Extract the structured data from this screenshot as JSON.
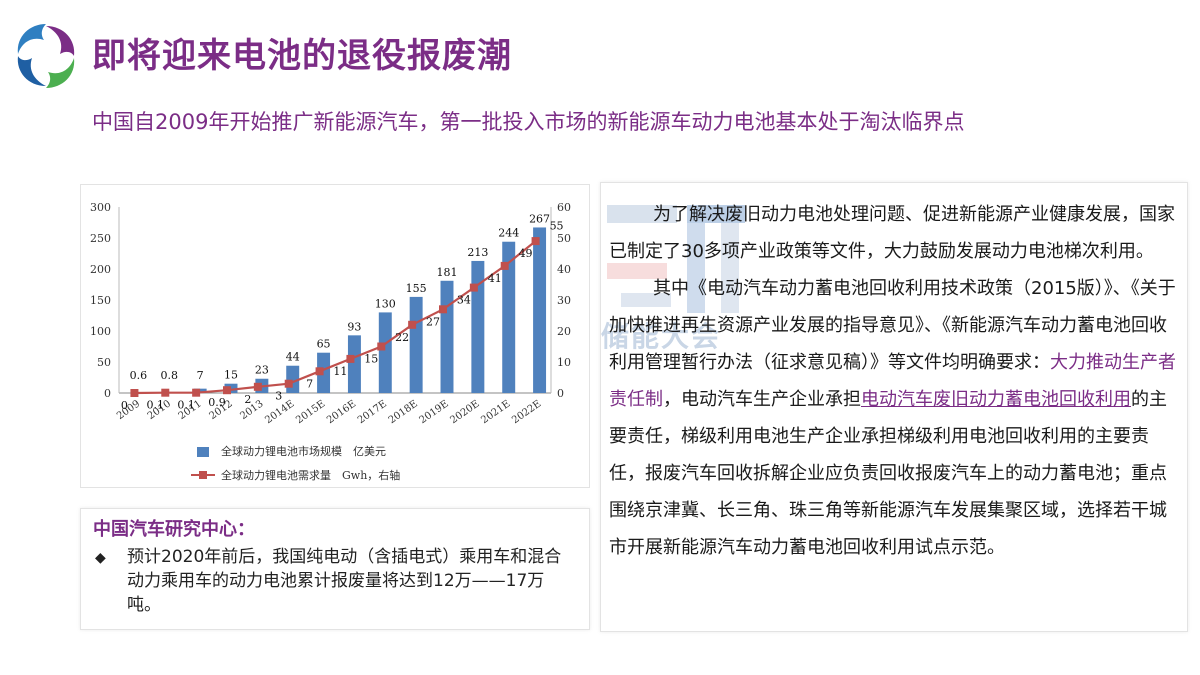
{
  "colors": {
    "accent": "#7b2d86",
    "bar": "#4f81bd",
    "line": "#c0504d"
  },
  "icons": {
    "logo": "swirl-logo-icon"
  },
  "header": {
    "title": "即将迎来电池的退役报废潮",
    "subtitle": "中国自2009年开始推广新能源汽车，第一批投入市场的新能源车动力电池基本处于淘汰临界点"
  },
  "chart_data": {
    "type": "bar",
    "categories": [
      "2009",
      "2010",
      "2011",
      "2012",
      "2013",
      "2014E",
      "2015E",
      "2016E",
      "2017E",
      "2018E",
      "2019E",
      "2020E",
      "2021E",
      "2022E"
    ],
    "series": [
      {
        "name": "全球动力锂电池市场规模　亿美元",
        "type": "bar",
        "axis": "left",
        "values": [
          0.6,
          0.8,
          7,
          15,
          23,
          44,
          65,
          93,
          130,
          155,
          181,
          213,
          244,
          267
        ],
        "labels": [
          "0.6",
          "0.8",
          "7",
          "15",
          "23",
          "44",
          "65",
          "93",
          "130",
          "155",
          "181",
          "213",
          "244",
          "267"
        ]
      },
      {
        "name": "全球动力锂电池需求量　Gwh，右轴",
        "type": "line",
        "axis": "right",
        "values": [
          0,
          0.1,
          0.1,
          0.9,
          2,
          3,
          7,
          11,
          15,
          22,
          27,
          34,
          41,
          49
        ],
        "labels": [
          "0",
          "0.1",
          "0.1",
          "0.9",
          "2",
          "3",
          "7",
          "11",
          "15",
          "22",
          "27",
          "34",
          "41",
          "49"
        ]
      }
    ],
    "extra_label": "55",
    "y_ticks": [
      "0",
      "50",
      "100",
      "150",
      "200",
      "250",
      "300"
    ],
    "y2_ticks": [
      "0",
      "10",
      "20",
      "30",
      "40",
      "50",
      "60"
    ],
    "ylim": [
      0,
      300
    ],
    "y2lim": [
      0,
      60
    ],
    "legend_position": "bottom"
  },
  "info": {
    "title": "中国汽车研究中心：",
    "bullet": "◆",
    "text": "预计2020年前后，我国纯电动（含插电式）乘用车和混合动力乘用车的动力电池累计报废量将达到12万——17万吨。"
  },
  "policy": {
    "watermark": "储能大会",
    "p1": "为了解决废旧动力电池处理问题、促进新能源产业健康发展，国家已制定了30多项产业政策等文件，大力鼓励发展动力电池梯次利用。",
    "p2_a": "其中《电动汽车动力蓄电池回收利用技术政策（2015版）》、《关于加快推进再生资源产业发展的指导意见》、《新能源汽车动力蓄电池回收利用管理暂行办法（征求意见稿）》等文件均明确要求：",
    "p2_hl1": "大力推动生产者责任制",
    "p2_b": "，电动汽车生产企业承担",
    "p2_hl2": "电动汽车废旧动力蓄电池回收利用",
    "p2_c": "的主要责任，梯级利用电池生产企业承担梯级利用电池回收利用的主要责任，报废汽车回收拆解企业应负责回收报废汽车上的动力蓄电池；重点围绕京津冀、长三角、珠三角等新能源汽车发展集聚区域，选择若干城市开展新能源汽车动力蓄电池回收利用试点示范。"
  }
}
